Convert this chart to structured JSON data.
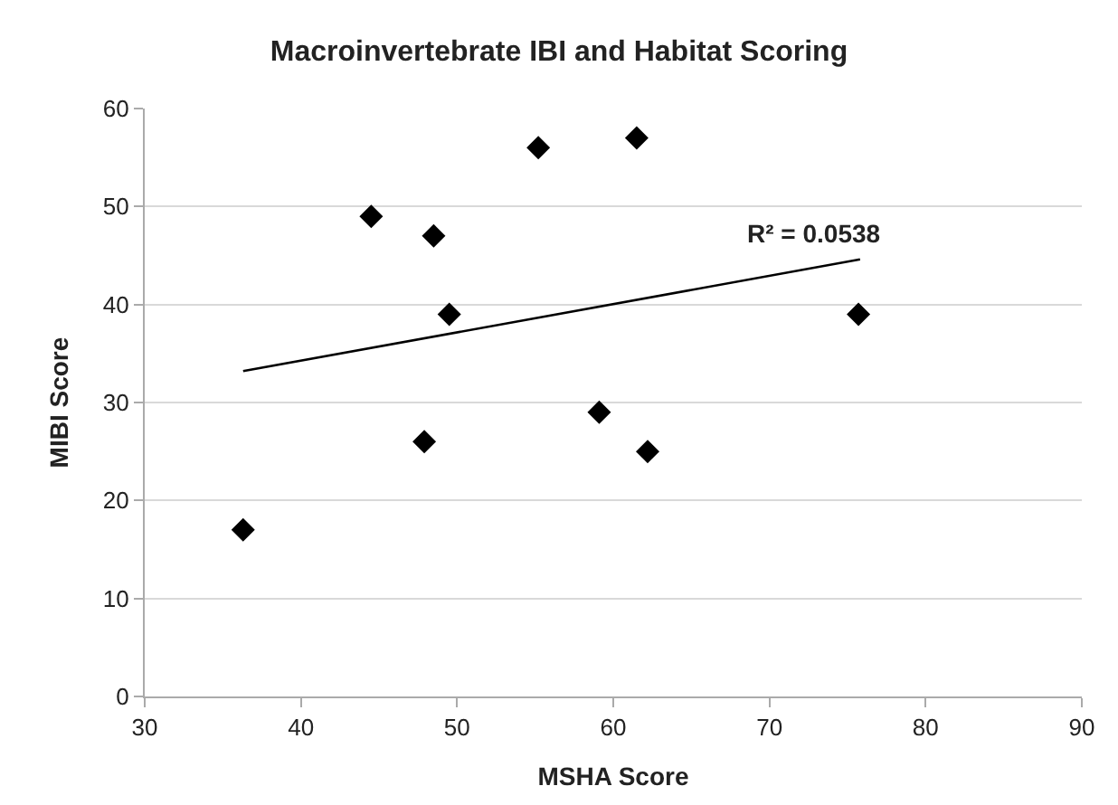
{
  "chart_data": {
    "type": "scatter",
    "title": "Macroinvertebrate IBI and Habitat Scoring",
    "xlabel": "MSHA Score",
    "ylabel": "MIBI Score",
    "series": [
      {
        "color": "#000000",
        "marker": "diamond",
        "x": [
          36.3,
          44.5,
          47.9,
          48.5,
          49.5,
          55.2,
          59.1,
          61.5,
          62.2,
          75.7
        ],
        "values": [
          17,
          49,
          26,
          47,
          39,
          56,
          29,
          57,
          25,
          39
        ]
      },
      {
        "type": "line",
        "color": "#000000",
        "marker": "none",
        "x": [
          36.3,
          75.8
        ],
        "values": [
          33.2,
          44.6
        ]
      }
    ],
    "annotations": [
      "R² = 0.0538"
    ],
    "xlim": [
      30,
      90
    ],
    "xticks": [
      30,
      40,
      50,
      60,
      70,
      80,
      90
    ],
    "ylim": [
      0,
      60
    ],
    "yticks": [
      0,
      10,
      20,
      30,
      40,
      50,
      60
    ],
    "grid": "y",
    "legend": false
  }
}
